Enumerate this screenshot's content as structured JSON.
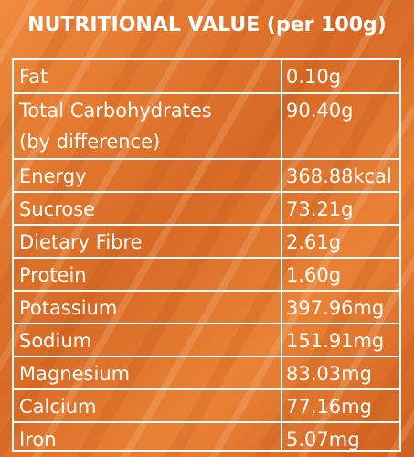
{
  "title": "NUTRITIONAL VALUE (per 100g)",
  "rows": [
    {
      "name": "Fat",
      "value": "0.10g"
    },
    {
      "name": "Total Carbohydrates",
      "name_line2": "(by difference)",
      "value": "90.40g"
    },
    {
      "name": "Energy",
      "value": "368.88kcal"
    },
    {
      "name": "Sucrose",
      "value": "73.21g"
    },
    {
      "name": "Dietary Fibre",
      "value": "2.61g"
    },
    {
      "name": "Protein",
      "value": "1.60g"
    },
    {
      "name": "Potassium",
      "value": "397.96mg"
    },
    {
      "name": "Sodium",
      "value": "151.91mg"
    },
    {
      "name": "Magnesium",
      "value": "83.03mg"
    },
    {
      "name": "Calcium",
      "value": "77.16mg"
    },
    {
      "name": "Iron",
      "value": "5.07mg"
    }
  ],
  "colors": {
    "background": "#e47c2d",
    "text": "#ffffff",
    "lines": "#ffffff"
  }
}
